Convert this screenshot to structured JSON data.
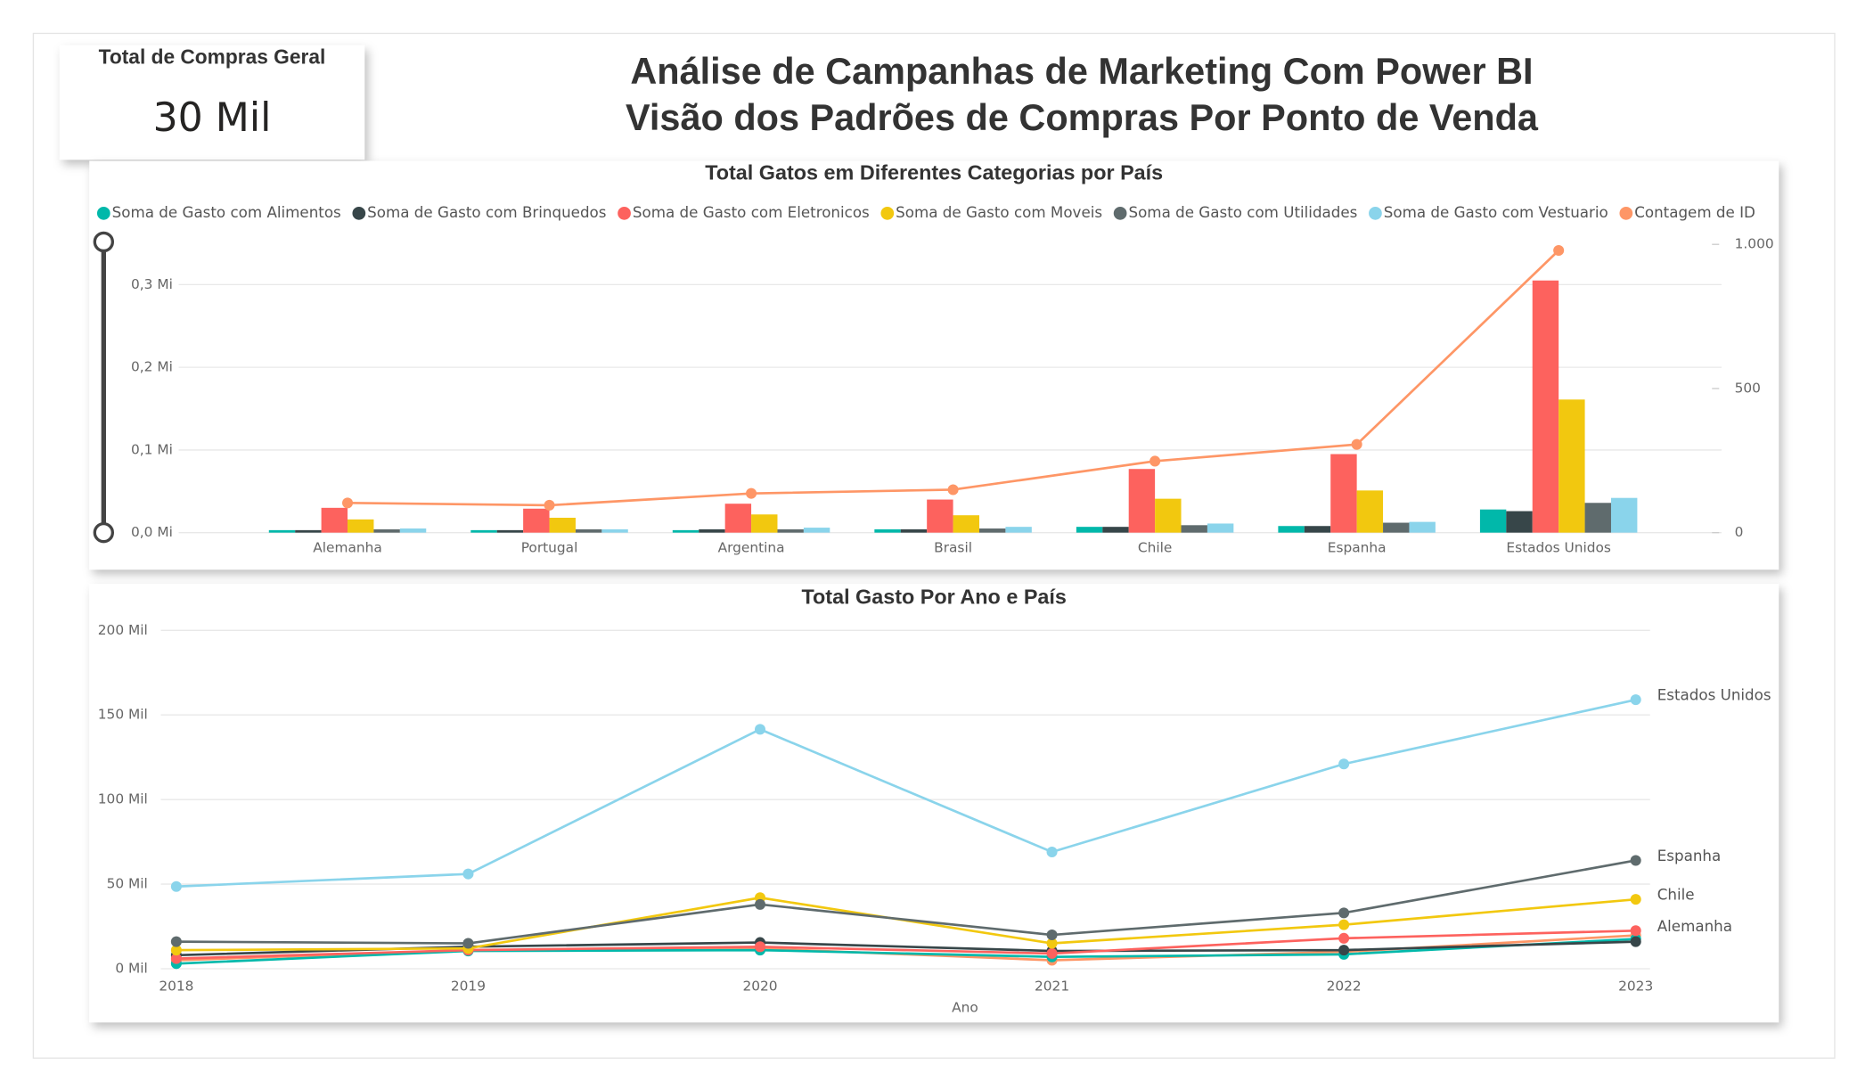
{
  "header": {
    "title_line1": "Análise de Campanhas de Marketing Com Power BI",
    "title_line2": "Visão dos Padrões de Compras Por Ponto de Venda"
  },
  "kpi": {
    "label": "Total de Compras Geral",
    "value": "30 Mil"
  },
  "chart_data": [
    {
      "type": "bar",
      "title": "Total Gatos em Diferentes Categorias por País",
      "categories": [
        "Alemanha",
        "Portugal",
        "Argentina",
        "Brasil",
        "Chile",
        "Espanha",
        "Estados Unidos"
      ],
      "series": [
        {
          "name": "Soma de Gasto com Alimentos",
          "color": "#01B8AA",
          "values": [
            0.003,
            0.003,
            0.003,
            0.004,
            0.007,
            0.008,
            0.028
          ]
        },
        {
          "name": "Soma de Gasto com Brinquedos",
          "color": "#374649",
          "values": [
            0.003,
            0.003,
            0.004,
            0.004,
            0.007,
            0.008,
            0.026
          ]
        },
        {
          "name": "Soma de Gasto com Eletronicos",
          "color": "#FD625E",
          "values": [
            0.03,
            0.029,
            0.035,
            0.04,
            0.077,
            0.095,
            0.305
          ]
        },
        {
          "name": "Soma de Gasto com Moveis",
          "color": "#F2C80F",
          "values": [
            0.016,
            0.018,
            0.022,
            0.021,
            0.041,
            0.051,
            0.161
          ]
        },
        {
          "name": "Soma de Gasto com Utilidades",
          "color": "#5F6B6D",
          "values": [
            0.004,
            0.004,
            0.004,
            0.005,
            0.009,
            0.012,
            0.036
          ]
        },
        {
          "name": "Soma de Gasto com Vestuario",
          "color": "#8AD4EB",
          "values": [
            0.005,
            0.004,
            0.006,
            0.007,
            0.011,
            0.013,
            0.042
          ]
        },
        {
          "name": "Contagem de ID",
          "color": "#FE9666",
          "type": "line",
          "axis": "y2",
          "values": [
            103,
            95,
            136,
            149,
            248,
            306,
            979
          ]
        }
      ],
      "ylim": [
        0,
        0.356
      ],
      "yticks": [
        {
          "value": 0,
          "label": "0,0 Mi"
        },
        {
          "value": 0.1,
          "label": "0,1 Mi"
        },
        {
          "value": 0.2,
          "label": "0,2 Mi"
        },
        {
          "value": 0.3,
          "label": "0,3 Mi"
        }
      ],
      "y2lim": [
        0,
        1021
      ],
      "y2ticks": [
        0,
        500,
        {
          "value": 1000,
          "label": "1.000"
        }
      ],
      "grid": true,
      "legend": "top"
    },
    {
      "type": "line",
      "title": "Total Gasto Por Ano e País",
      "x_label": "Ano",
      "categories": [
        "2018",
        "2019",
        "2020",
        "2021",
        "2022",
        "2023"
      ],
      "series": [
        {
          "name": "Estados Unidos",
          "color": "#8AD4EB",
          "values": [
            48.6,
            56,
            141.5,
            69,
            121,
            159
          ]
        },
        {
          "name": "Espanha",
          "color": "#5F6B6D",
          "values": [
            16,
            15,
            38,
            20,
            33,
            64
          ]
        },
        {
          "name": "Chile",
          "color": "#F2C80F",
          "values": [
            11,
            12,
            42,
            15,
            26,
            41
          ]
        },
        {
          "name": "Alemanha",
          "color": "#FD625E",
          "values": [
            6,
            11,
            13,
            9,
            18,
            22.5
          ]
        },
        {
          "color": "#374649",
          "values": [
            8,
            13,
            15.5,
            10.5,
            11,
            16
          ]
        },
        {
          "color": "#01B8AA",
          "values": [
            3,
            10.5,
            11,
            7,
            8.5,
            17.6
          ]
        },
        {
          "color": "#FE9666",
          "values": [
            5,
            11,
            12,
            5,
            10,
            19.7
          ]
        }
      ],
      "ylim": [
        0,
        200
      ],
      "yticks": [
        {
          "value": 0,
          "label": "0 Mil"
        },
        {
          "value": 50,
          "label": "50 Mil"
        },
        {
          "value": 100,
          "label": "100 Mil"
        },
        {
          "value": 150,
          "label": "150 Mil"
        },
        {
          "value": 200,
          "label": "200 Mil"
        }
      ],
      "grid": true
    }
  ]
}
